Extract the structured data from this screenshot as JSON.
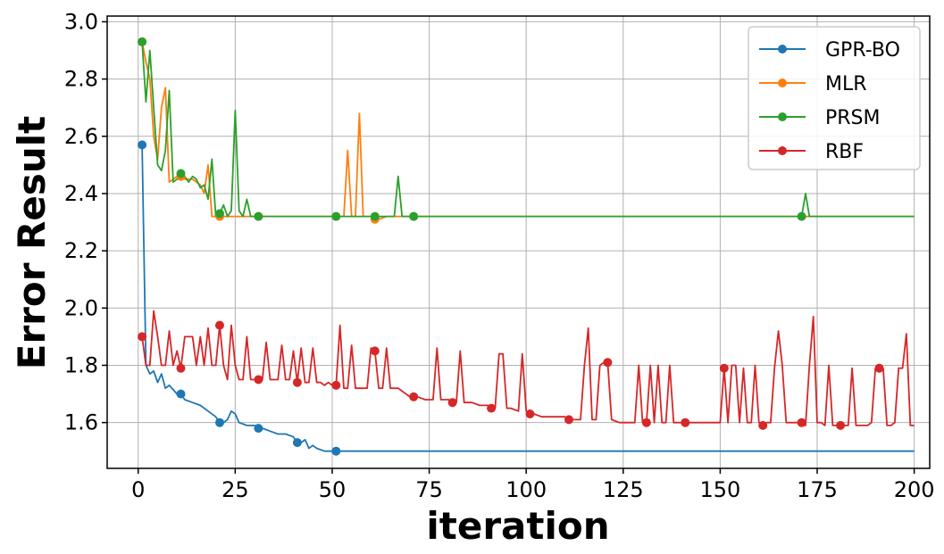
{
  "chart_data": {
    "type": "line",
    "title": "",
    "xlabel": "iteration",
    "ylabel": "Error Result",
    "xlim": [
      -8,
      204
    ],
    "ylim": [
      1.44,
      3.02
    ],
    "xticks": [
      0,
      25,
      50,
      75,
      100,
      125,
      150,
      175,
      200
    ],
    "yticks": [
      1.6,
      1.8,
      2.0,
      2.2,
      2.4,
      2.6,
      2.8,
      3.0
    ],
    "grid": true,
    "legend_position": "top-right",
    "marker_every": 10,
    "marker_start": 1,
    "series": [
      {
        "name": "GPR-BO",
        "color": "#1f77b4",
        "x": [
          1,
          2,
          3,
          4,
          5,
          6,
          7,
          8,
          10,
          11,
          12,
          14,
          16,
          18,
          20,
          21,
          22,
          23,
          24,
          25,
          26,
          28,
          30,
          31,
          32,
          34,
          36,
          38,
          40,
          41,
          42,
          43,
          44,
          45,
          46,
          48,
          50,
          51,
          60,
          70,
          80,
          90,
          100,
          110,
          120,
          130,
          140,
          150,
          160,
          170,
          180,
          190,
          200
        ],
        "y": [
          2.57,
          1.8,
          1.77,
          1.78,
          1.74,
          1.77,
          1.72,
          1.73,
          1.7,
          1.7,
          1.68,
          1.67,
          1.66,
          1.64,
          1.62,
          1.6,
          1.6,
          1.61,
          1.64,
          1.63,
          1.6,
          1.59,
          1.59,
          1.58,
          1.58,
          1.57,
          1.56,
          1.56,
          1.55,
          1.53,
          1.53,
          1.54,
          1.51,
          1.52,
          1.51,
          1.5,
          1.5,
          1.5,
          1.5,
          1.5,
          1.5,
          1.5,
          1.5,
          1.5,
          1.5,
          1.5,
          1.5,
          1.5,
          1.5,
          1.5,
          1.5,
          1.5,
          1.5
        ]
      },
      {
        "name": "MLR",
        "color": "#ff7f0e",
        "x": [
          1,
          2,
          3,
          4,
          5,
          6,
          7,
          8,
          9,
          10,
          11,
          12,
          14,
          16,
          17,
          18,
          19,
          20,
          21,
          22,
          24,
          26,
          28,
          30,
          31,
          40,
          50,
          51,
          52,
          53,
          54,
          55,
          56,
          57,
          58,
          59,
          60,
          61,
          62,
          64,
          66,
          68,
          70,
          71,
          80,
          90,
          100,
          110,
          120,
          130,
          140,
          150,
          160,
          170,
          180,
          190,
          200
        ],
        "y": [
          2.93,
          2.86,
          2.8,
          2.6,
          2.52,
          2.7,
          2.77,
          2.44,
          2.45,
          2.46,
          2.46,
          2.45,
          2.45,
          2.43,
          2.4,
          2.5,
          2.32,
          2.32,
          2.32,
          2.32,
          2.32,
          2.32,
          2.32,
          2.32,
          2.32,
          2.32,
          2.32,
          2.32,
          2.32,
          2.32,
          2.55,
          2.32,
          2.32,
          2.68,
          2.32,
          2.32,
          2.32,
          2.31,
          2.31,
          2.32,
          2.32,
          2.32,
          2.32,
          2.32,
          2.32,
          2.32,
          2.32,
          2.32,
          2.32,
          2.32,
          2.32,
          2.32,
          2.32,
          2.32,
          2.32,
          2.32,
          2.32
        ]
      },
      {
        "name": "PRSM",
        "color": "#2ca02c",
        "x": [
          1,
          2,
          3,
          4,
          5,
          6,
          7,
          8,
          9,
          10,
          11,
          12,
          13,
          14,
          15,
          16,
          17,
          18,
          19,
          20,
          21,
          22,
          23,
          24,
          25,
          26,
          27,
          28,
          29,
          30,
          31,
          40,
          50,
          51,
          60,
          61,
          62,
          64,
          66,
          67,
          68,
          70,
          71,
          80,
          90,
          100,
          110,
          120,
          130,
          140,
          150,
          160,
          170,
          171,
          172,
          173,
          180,
          190,
          200
        ],
        "y": [
          2.93,
          2.72,
          2.9,
          2.7,
          2.5,
          2.48,
          2.55,
          2.76,
          2.44,
          2.45,
          2.47,
          2.46,
          2.44,
          2.46,
          2.45,
          2.42,
          2.43,
          2.38,
          2.52,
          2.32,
          2.33,
          2.36,
          2.32,
          2.34,
          2.69,
          2.34,
          2.32,
          2.38,
          2.32,
          2.32,
          2.32,
          2.32,
          2.32,
          2.32,
          2.32,
          2.32,
          2.32,
          2.32,
          2.32,
          2.46,
          2.32,
          2.32,
          2.32,
          2.32,
          2.32,
          2.32,
          2.32,
          2.32,
          2.32,
          2.32,
          2.32,
          2.32,
          2.32,
          2.32,
          2.4,
          2.32,
          2.32,
          2.32,
          2.32
        ]
      },
      {
        "name": "RBF",
        "color": "#d62728",
        "x": [
          1,
          2,
          3,
          4,
          5,
          6,
          7,
          8,
          9,
          10,
          11,
          12,
          13,
          14,
          15,
          16,
          17,
          18,
          19,
          20,
          21,
          22,
          23,
          24,
          25,
          26,
          27,
          28,
          29,
          30,
          31,
          32,
          33,
          34,
          35,
          36,
          37,
          38,
          39,
          40,
          41,
          42,
          43,
          44,
          45,
          46,
          47,
          48,
          49,
          50,
          51,
          52,
          53,
          54,
          55,
          56,
          57,
          58,
          59,
          60,
          61,
          62,
          63,
          64,
          65,
          66,
          67,
          68,
          70,
          71,
          72,
          74,
          76,
          77,
          78,
          80,
          81,
          82,
          83,
          84,
          85,
          86,
          88,
          90,
          91,
          92,
          93,
          94,
          95,
          96,
          98,
          99,
          100,
          101,
          102,
          104,
          106,
          108,
          110,
          111,
          112,
          114,
          115,
          116,
          117,
          118,
          119,
          120,
          121,
          122,
          124,
          126,
          128,
          129,
          130,
          131,
          132,
          133,
          134,
          135,
          136,
          137,
          138,
          139,
          140,
          141,
          142,
          144,
          146,
          148,
          150,
          151,
          152,
          153,
          154,
          155,
          156,
          157,
          158,
          159,
          160,
          161,
          162,
          163,
          164,
          165,
          166,
          167,
          168,
          169,
          170,
          171,
          172,
          173,
          174,
          175,
          176,
          177,
          178,
          179,
          180,
          181,
          182,
          183,
          184,
          185,
          186,
          187,
          188,
          189,
          190,
          191,
          192,
          193,
          194,
          195,
          196,
          197,
          198,
          199,
          200
        ],
        "y": [
          1.9,
          1.8,
          1.8,
          1.99,
          1.9,
          1.8,
          1.8,
          1.92,
          1.8,
          1.85,
          1.79,
          1.9,
          1.9,
          1.9,
          1.8,
          1.9,
          1.8,
          1.93,
          1.8,
          1.8,
          1.94,
          1.8,
          1.75,
          1.94,
          1.8,
          1.75,
          1.75,
          1.9,
          1.75,
          1.75,
          1.75,
          1.75,
          1.88,
          1.75,
          1.75,
          1.75,
          1.87,
          1.75,
          1.75,
          1.85,
          1.74,
          1.86,
          1.74,
          1.74,
          1.86,
          1.74,
          1.74,
          1.73,
          1.74,
          1.73,
          1.73,
          1.94,
          1.72,
          1.72,
          1.87,
          1.72,
          1.72,
          1.72,
          1.72,
          1.86,
          1.85,
          1.72,
          1.72,
          1.86,
          1.72,
          1.72,
          1.72,
          1.71,
          1.69,
          1.69,
          1.69,
          1.68,
          1.68,
          1.86,
          1.68,
          1.68,
          1.67,
          1.67,
          1.85,
          1.67,
          1.67,
          1.67,
          1.66,
          1.66,
          1.65,
          1.65,
          1.84,
          1.84,
          1.65,
          1.65,
          1.64,
          1.84,
          1.64,
          1.63,
          1.63,
          1.62,
          1.62,
          1.62,
          1.62,
          1.61,
          1.61,
          1.61,
          1.8,
          1.93,
          1.61,
          1.61,
          1.8,
          1.81,
          1.81,
          1.61,
          1.6,
          1.6,
          1.6,
          1.8,
          1.6,
          1.6,
          1.8,
          1.6,
          1.8,
          1.6,
          1.6,
          1.8,
          1.6,
          1.6,
          1.6,
          1.6,
          1.6,
          1.6,
          1.6,
          1.6,
          1.6,
          1.79,
          1.6,
          1.8,
          1.8,
          1.6,
          1.79,
          1.6,
          1.6,
          1.8,
          1.6,
          1.59,
          1.6,
          1.6,
          1.79,
          1.92,
          1.8,
          1.6,
          1.6,
          1.6,
          1.6,
          1.6,
          1.59,
          1.8,
          1.97,
          1.6,
          1.6,
          1.59,
          1.8,
          1.59,
          1.59,
          1.59,
          1.59,
          1.59,
          1.79,
          1.59,
          1.59,
          1.59,
          1.59,
          1.6,
          1.79,
          1.79,
          1.79,
          1.59,
          1.59,
          1.6,
          1.79,
          1.79,
          1.91,
          1.59,
          1.59
        ]
      }
    ]
  }
}
